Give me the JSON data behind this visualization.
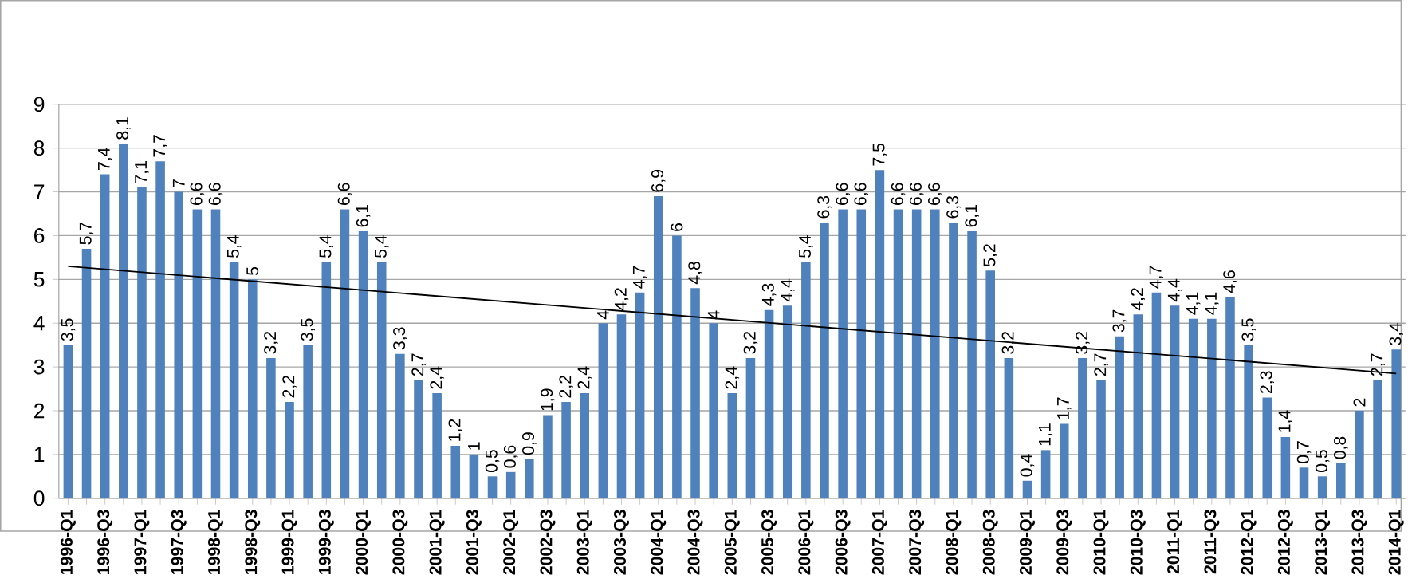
{
  "chart_data": {
    "type": "bar",
    "categories": [
      "1996-Q1",
      null,
      "1996-Q3",
      null,
      "1997-Q1",
      null,
      "1997-Q3",
      null,
      "1998-Q1",
      null,
      "1998-Q3",
      null,
      "1999-Q1",
      null,
      "1999-Q3",
      null,
      "2000-Q1",
      null,
      "2000-Q3",
      null,
      "2001-Q1",
      null,
      "2001-Q3",
      null,
      "2002-Q1",
      null,
      "2002-Q3",
      null,
      "2003-Q1",
      null,
      "2003-Q3",
      null,
      "2004-Q1",
      null,
      "2004-Q3",
      null,
      "2005-Q1",
      null,
      "2005-Q3",
      null,
      "2006-Q1",
      null,
      "2006-Q3",
      null,
      "2007-Q1",
      null,
      "2007-Q3",
      null,
      "2008-Q1",
      null,
      "2008-Q3",
      null,
      "2009-Q1",
      null,
      "2009-Q3",
      null,
      "2010-Q1",
      null,
      "2010-Q3",
      null,
      "2011-Q1",
      null,
      "2011-Q3",
      null,
      "2012-Q1",
      null,
      "2012-Q3",
      null,
      "2013-Q1",
      null,
      "2013-Q3",
      null,
      "2014-Q1"
    ],
    "series": [
      {
        "color": "#4f81bd",
        "values": [
          3.5,
          5.7,
          7.4,
          8.1,
          7.1,
          7.7,
          7,
          6.6,
          6.6,
          5.4,
          5,
          3.2,
          2.2,
          3.5,
          5.4,
          6.6,
          6.1,
          5.4,
          3.3,
          2.7,
          2.4,
          1.2,
          1,
          0.5,
          0.6,
          0.9,
          1.9,
          2.2,
          2.4,
          4,
          4.2,
          4.7,
          6.9,
          6,
          4.8,
          4,
          2.4,
          3.2,
          4.3,
          4.4,
          5.4,
          6.3,
          6.6,
          6.6,
          7.5,
          6.6,
          6.6,
          6.6,
          6.3,
          6.1,
          5.2,
          3.2,
          0.4,
          1.1,
          1.7,
          3.2,
          2.7,
          3.7,
          4.2,
          4.7,
          4.4,
          4.1,
          4.1,
          4.6,
          3.5,
          2.3,
          1.4,
          0.7,
          0.5,
          0.8,
          2,
          2.7,
          3.4
        ],
        "value_labels": [
          "3,5",
          "5,7",
          "7,4",
          "8,1",
          "7,1",
          "7,7",
          "7",
          "6,6",
          "6,6",
          "5,4",
          "5",
          "3,2",
          "2,2",
          "3,5",
          "5,4",
          "6,6",
          "6,1",
          "5,4",
          "3,3",
          "2,7",
          "2,4",
          "1,2",
          "1",
          "0,5",
          "0,6",
          "0,9",
          "1,9",
          "2,2",
          "2,4",
          "4",
          "4,2",
          "4,7",
          "6,9",
          "6",
          "4,8",
          "4",
          "2,4",
          "3,2",
          "4,3",
          "4,4",
          "5,4",
          "6,3",
          "6,6",
          "6,6",
          "7,5",
          "6,6",
          "6,6",
          "6,6",
          "6,3",
          "6,1",
          "5,2",
          "3,2",
          "0,4",
          "1,1",
          "1,7",
          "3,2",
          "2,7",
          "3,7",
          "4,2",
          "4,7",
          "4,4",
          "4,1",
          "4,1",
          "4,6",
          "3,5",
          "2,3",
          "1,4",
          "0,7",
          "0,5",
          "0,8",
          "2",
          "2,7",
          "3,4"
        ]
      },
      {
        "type": "line",
        "color": "#000000",
        "x": [
          "1996-Q1",
          "2014-Q1"
        ],
        "values": [
          5.3,
          2.85
        ]
      }
    ],
    "ylim": [
      0,
      9
    ],
    "yticks": [
      0,
      1,
      2,
      3,
      4,
      5,
      6,
      7,
      8,
      9
    ],
    "grid": "y"
  }
}
